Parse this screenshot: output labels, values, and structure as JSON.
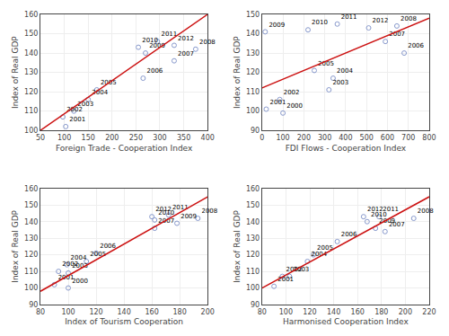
{
  "chart_data": [
    {
      "type": "scatter",
      "xlabel": "Foreign Trade - Cooperation Index",
      "ylabel": "Index of Real GDP",
      "xlim": [
        50,
        400
      ],
      "ylim": [
        100,
        160
      ],
      "xticks": [
        50,
        100,
        150,
        200,
        250,
        300,
        350,
        400
      ],
      "yticks": [
        100,
        110,
        120,
        130,
        140,
        150,
        160
      ],
      "grid": true,
      "series": [
        {
          "type": "scatter",
          "color": "#8899cc",
          "marker": "circle-open",
          "x": [
            103,
            97,
            120,
            150,
            168,
            265,
            330,
            375,
            270,
            255,
            295,
            330
          ],
          "values": [
            102,
            107,
            110,
            116,
            121,
            127,
            136,
            142,
            140,
            143,
            146,
            144
          ],
          "annotations": [
            "2001",
            "2002",
            "2003",
            "2004",
            "2005",
            "2006",
            "2007",
            "2008",
            "2009",
            "2010",
            "2011",
            "2012"
          ]
        },
        {
          "type": "line",
          "color": "#cc1111",
          "line_style": "solid",
          "x": [
            50,
            400
          ],
          "values": [
            100,
            160
          ]
        }
      ]
    },
    {
      "type": "scatter",
      "xlabel": "FDI Flows - Cooperation Index",
      "ylabel": "Index of Real GDP",
      "xlim": [
        0,
        800
      ],
      "ylim": [
        90,
        150
      ],
      "xticks": [
        0,
        100,
        200,
        300,
        400,
        500,
        600,
        700,
        800
      ],
      "yticks": [
        90,
        100,
        110,
        120,
        130,
        140,
        150
      ],
      "grid": true,
      "series": [
        {
          "type": "scatter",
          "color": "#8899cc",
          "marker": "circle-open",
          "x": [
            100,
            20,
            85,
            320,
            340,
            250,
            680,
            590,
            645,
            15,
            220,
            360,
            510
          ],
          "values": [
            99,
            101,
            106,
            111,
            117,
            121,
            130,
            136,
            144,
            141,
            142,
            145,
            143
          ],
          "annotations": [
            "2000",
            "2001",
            "2002",
            "2003",
            "2004",
            "2005",
            "2006",
            "2007",
            "2008",
            "2009",
            "2010",
            "2011",
            "2012"
          ]
        },
        {
          "type": "line",
          "color": "#cc1111",
          "line_style": "solid",
          "x": [
            0,
            800
          ],
          "values": [
            112,
            148
          ]
        }
      ]
    },
    {
      "type": "scatter",
      "xlabel": "Index of Tourism Cooperation",
      "ylabel": "Index of Real GDP",
      "xlim": [
        80,
        200
      ],
      "ylim": [
        90,
        160
      ],
      "xticks": [
        80,
        100,
        120,
        140,
        160,
        180,
        200
      ],
      "yticks": [
        90,
        100,
        110,
        120,
        130,
        140,
        150,
        160
      ],
      "grid": true,
      "series": [
        {
          "type": "scatter",
          "color": "#8899cc",
          "marker": "circle-open",
          "x": [
            100,
            90,
            93,
            100,
            99,
            113,
            120,
            162,
            193,
            178,
            162,
            172,
            160
          ],
          "values": [
            100,
            102,
            110,
            109,
            114,
            116,
            121,
            136,
            142,
            139,
            141,
            144,
            143
          ],
          "annotations": [
            "2000",
            "2001",
            "2002",
            "2003",
            "2004",
            "2005",
            "2006",
            "2007",
            "2008",
            "2009",
            "2010",
            "2011",
            "2012"
          ]
        },
        {
          "type": "line",
          "color": "#cc1111",
          "line_style": "solid",
          "x": [
            80,
            200
          ],
          "values": [
            98,
            155
          ]
        }
      ]
    },
    {
      "type": "scatter",
      "xlabel": "Harmonised Cooperation Index",
      "ylabel": "Index of Real GDP",
      "xlim": [
        80,
        220
      ],
      "ylim": [
        90,
        160
      ],
      "xticks": [
        80,
        100,
        120,
        140,
        160,
        180,
        200,
        220
      ],
      "yticks": [
        90,
        100,
        110,
        120,
        130,
        140,
        150,
        160
      ],
      "grid": true,
      "series": [
        {
          "type": "scatter",
          "color": "#8899cc",
          "marker": "circle-open",
          "x": [
            90,
            97,
            103,
            118,
            123,
            143,
            183,
            207,
            175,
            168,
            178,
            165
          ],
          "values": [
            101,
            107,
            107,
            116,
            120,
            128,
            134,
            142,
            136,
            140,
            143,
            143
          ],
          "annotations": [
            "2001",
            "2002",
            "2003",
            "2004",
            "2005",
            "2006",
            "2007",
            "2008",
            "2009",
            "2010",
            "2011",
            "2012"
          ]
        },
        {
          "type": "line",
          "color": "#cc1111",
          "line_style": "solid",
          "x": [
            80,
            220
          ],
          "values": [
            100,
            155
          ]
        }
      ]
    }
  ]
}
